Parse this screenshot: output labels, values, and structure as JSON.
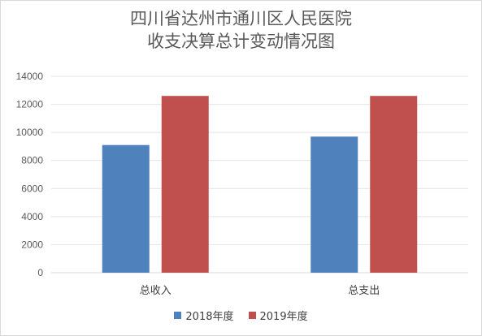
{
  "chart_data": {
    "type": "bar",
    "title_lines": [
      "四川省达州市通川区人民医院",
      "收支决算总计变动情况图"
    ],
    "categories": [
      "总收入",
      "总支出"
    ],
    "series": [
      {
        "name": "2018年度",
        "color": "#4f81bd",
        "values": [
          9100,
          9700
        ]
      },
      {
        "name": "2019年度",
        "color": "#c0504d",
        "values": [
          12600,
          12600
        ]
      }
    ],
    "ylim": [
      0,
      14000
    ],
    "yticks": [
      0,
      2000,
      4000,
      6000,
      8000,
      10000,
      12000,
      14000
    ],
    "grid": true,
    "legend_position": "bottom"
  }
}
